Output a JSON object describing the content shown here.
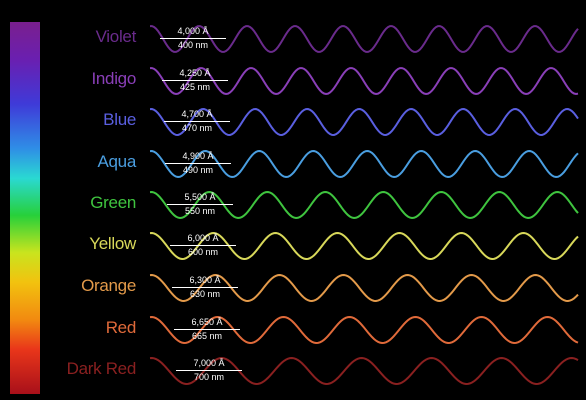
{
  "bands": [
    {
      "name": "Violet",
      "angstrom": "4,000 Å",
      "nm": "400 nm",
      "color": "#6a2b8c"
    },
    {
      "name": "Indigo",
      "angstrom": "4,250 Å",
      "nm": "425 nm",
      "color": "#8a3fb8"
    },
    {
      "name": "Blue",
      "angstrom": "4,700 Å",
      "nm": "470 nm",
      "color": "#5a5fe0"
    },
    {
      "name": "Aqua",
      "angstrom": "4,900 Å",
      "nm": "490 nm",
      "color": "#4a9ee0"
    },
    {
      "name": "Green",
      "angstrom": "5,500 Å",
      "nm": "550 nm",
      "color": "#3fc43f"
    },
    {
      "name": "Yellow",
      "angstrom": "6,000 Å",
      "nm": "600 nm",
      "color": "#d8d85a"
    },
    {
      "name": "Orange",
      "angstrom": "6,300 Å",
      "nm": "630 nm",
      "color": "#e39a4a"
    },
    {
      "name": "Red",
      "angstrom": "6,650 Å",
      "nm": "665 nm",
      "color": "#e06a3a"
    },
    {
      "name": "Dark Red",
      "angstrom": "7,000 Å",
      "nm": "700 nm",
      "color": "#8a2020"
    }
  ]
}
